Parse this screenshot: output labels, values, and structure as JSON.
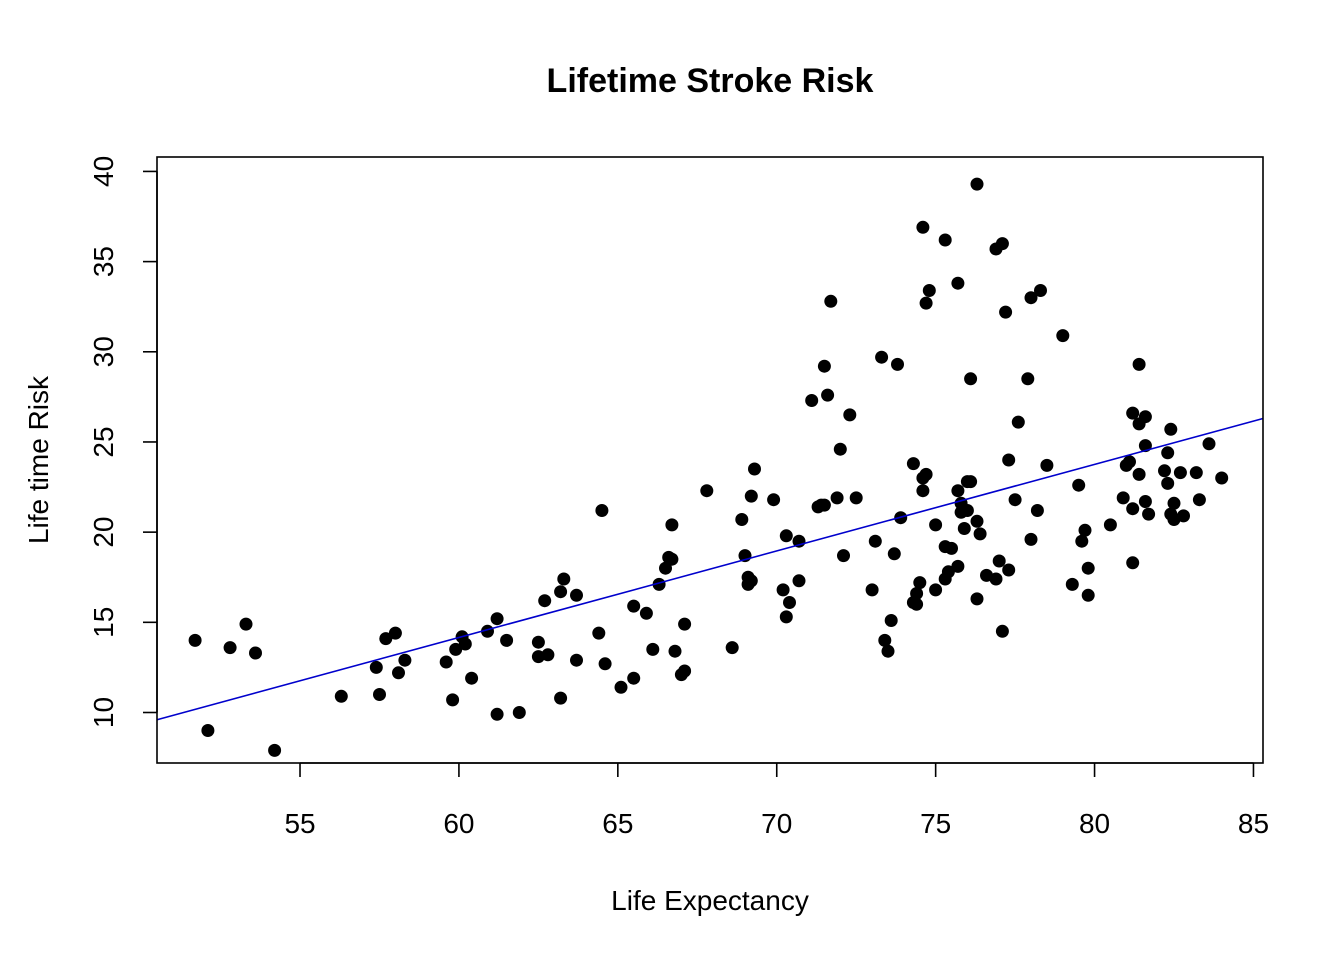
{
  "chart_data": {
    "type": "scatter",
    "title": "Lifetime Stroke Risk",
    "xlabel": "Life Expectancy",
    "ylabel": "Life time Risk",
    "xlim": [
      50.5,
      85.3
    ],
    "ylim": [
      7.2,
      40.8
    ],
    "xticks": [
      55,
      60,
      65,
      70,
      75,
      80,
      85
    ],
    "yticks": [
      10,
      15,
      20,
      25,
      30,
      35,
      40
    ],
    "grid": false,
    "legend": "none",
    "point_color": "#000000",
    "line_color": "#0000cc",
    "regression_line": {
      "x": [
        50.5,
        85.3
      ],
      "y": [
        9.6,
        26.3
      ]
    },
    "points": [
      [
        51.7,
        14.0
      ],
      [
        52.1,
        9.0
      ],
      [
        52.8,
        13.6
      ],
      [
        53.3,
        14.9
      ],
      [
        53.6,
        13.3
      ],
      [
        54.2,
        7.9
      ],
      [
        56.3,
        10.9
      ],
      [
        57.4,
        12.5
      ],
      [
        57.5,
        11.0
      ],
      [
        57.7,
        14.1
      ],
      [
        58.0,
        14.4
      ],
      [
        58.1,
        12.2
      ],
      [
        58.3,
        12.9
      ],
      [
        59.6,
        12.8
      ],
      [
        59.8,
        10.7
      ],
      [
        59.9,
        13.5
      ],
      [
        60.1,
        14.2
      ],
      [
        60.2,
        13.8
      ],
      [
        60.4,
        11.9
      ],
      [
        60.9,
        14.5
      ],
      [
        61.2,
        15.2
      ],
      [
        61.2,
        9.9
      ],
      [
        61.5,
        14.0
      ],
      [
        61.9,
        10.0
      ],
      [
        62.5,
        13.9
      ],
      [
        62.5,
        13.1
      ],
      [
        62.7,
        16.2
      ],
      [
        62.8,
        13.2
      ],
      [
        63.2,
        16.7
      ],
      [
        63.2,
        10.8
      ],
      [
        63.3,
        17.4
      ],
      [
        63.7,
        16.5
      ],
      [
        63.7,
        12.9
      ],
      [
        64.4,
        14.4
      ],
      [
        64.5,
        21.2
      ],
      [
        64.6,
        12.7
      ],
      [
        65.1,
        11.4
      ],
      [
        65.5,
        15.9
      ],
      [
        65.5,
        11.9
      ],
      [
        65.9,
        15.5
      ],
      [
        66.1,
        13.5
      ],
      [
        66.3,
        17.1
      ],
      [
        66.5,
        18.0
      ],
      [
        66.6,
        18.6
      ],
      [
        66.7,
        18.5
      ],
      [
        66.7,
        20.4
      ],
      [
        66.8,
        13.4
      ],
      [
        67.0,
        12.1
      ],
      [
        67.1,
        12.3
      ],
      [
        67.1,
        14.9
      ],
      [
        67.8,
        22.3
      ],
      [
        68.6,
        13.6
      ],
      [
        68.9,
        20.7
      ],
      [
        69.0,
        18.7
      ],
      [
        69.1,
        17.5
      ],
      [
        69.1,
        17.1
      ],
      [
        69.2,
        22.0
      ],
      [
        69.2,
        17.3
      ],
      [
        69.3,
        23.5
      ],
      [
        69.9,
        21.8
      ],
      [
        70.2,
        16.8
      ],
      [
        70.3,
        19.8
      ],
      [
        70.3,
        15.3
      ],
      [
        70.4,
        16.1
      ],
      [
        70.7,
        17.3
      ],
      [
        70.7,
        19.5
      ],
      [
        71.1,
        27.3
      ],
      [
        71.3,
        21.4
      ],
      [
        71.4,
        21.5
      ],
      [
        71.5,
        29.2
      ],
      [
        71.5,
        21.5
      ],
      [
        71.6,
        27.6
      ],
      [
        71.7,
        32.8
      ],
      [
        71.9,
        21.9
      ],
      [
        72.0,
        24.6
      ],
      [
        72.1,
        18.7
      ],
      [
        72.3,
        26.5
      ],
      [
        72.5,
        21.9
      ],
      [
        73.0,
        16.8
      ],
      [
        73.1,
        19.5
      ],
      [
        73.3,
        29.7
      ],
      [
        73.4,
        14.0
      ],
      [
        73.5,
        13.4
      ],
      [
        73.6,
        15.1
      ],
      [
        73.7,
        18.8
      ],
      [
        73.8,
        29.3
      ],
      [
        73.9,
        20.8
      ],
      [
        74.3,
        23.8
      ],
      [
        74.3,
        16.1
      ],
      [
        74.4,
        16.0
      ],
      [
        74.4,
        16.6
      ],
      [
        74.5,
        17.2
      ],
      [
        74.6,
        22.3
      ],
      [
        74.6,
        23.0
      ],
      [
        74.6,
        36.9
      ],
      [
        74.7,
        23.2
      ],
      [
        74.7,
        32.7
      ],
      [
        74.8,
        33.4
      ],
      [
        75.0,
        16.8
      ],
      [
        75.0,
        20.4
      ],
      [
        75.3,
        36.2
      ],
      [
        75.3,
        19.2
      ],
      [
        75.3,
        17.4
      ],
      [
        75.4,
        17.8
      ],
      [
        75.5,
        19.1
      ],
      [
        75.7,
        33.8
      ],
      [
        75.7,
        22.3
      ],
      [
        75.7,
        18.1
      ],
      [
        75.8,
        21.6
      ],
      [
        75.8,
        21.1
      ],
      [
        75.9,
        20.2
      ],
      [
        76.0,
        22.8
      ],
      [
        76.0,
        21.2
      ],
      [
        76.1,
        28.5
      ],
      [
        76.1,
        22.8
      ],
      [
        76.3,
        20.6
      ],
      [
        76.3,
        16.3
      ],
      [
        76.3,
        39.3
      ],
      [
        76.4,
        19.9
      ],
      [
        76.6,
        17.6
      ],
      [
        76.9,
        17.4
      ],
      [
        76.9,
        35.7
      ],
      [
        77.0,
        18.4
      ],
      [
        77.1,
        36.0
      ],
      [
        77.1,
        14.5
      ],
      [
        77.2,
        32.2
      ],
      [
        77.3,
        24.0
      ],
      [
        77.3,
        17.9
      ],
      [
        77.5,
        21.8
      ],
      [
        77.6,
        26.1
      ],
      [
        77.9,
        28.5
      ],
      [
        78.0,
        33.0
      ],
      [
        78.0,
        19.6
      ],
      [
        78.2,
        21.2
      ],
      [
        78.3,
        33.4
      ],
      [
        78.5,
        23.7
      ],
      [
        79.0,
        30.9
      ],
      [
        79.3,
        17.1
      ],
      [
        79.5,
        22.6
      ],
      [
        79.6,
        19.5
      ],
      [
        79.7,
        20.1
      ],
      [
        79.8,
        18.0
      ],
      [
        79.8,
        16.5
      ],
      [
        80.5,
        20.4
      ],
      [
        80.9,
        21.9
      ],
      [
        81.0,
        23.7
      ],
      [
        81.1,
        23.9
      ],
      [
        81.2,
        21.3
      ],
      [
        81.2,
        26.6
      ],
      [
        81.2,
        18.3
      ],
      [
        81.4,
        26.0
      ],
      [
        81.4,
        23.2
      ],
      [
        81.4,
        29.3
      ],
      [
        81.6,
        26.4
      ],
      [
        81.6,
        24.8
      ],
      [
        81.6,
        21.7
      ],
      [
        81.7,
        21.0
      ],
      [
        82.2,
        23.4
      ],
      [
        82.3,
        22.7
      ],
      [
        82.3,
        24.4
      ],
      [
        82.4,
        25.7
      ],
      [
        82.4,
        21.0
      ],
      [
        82.5,
        21.6
      ],
      [
        82.5,
        20.7
      ],
      [
        82.7,
        23.3
      ],
      [
        82.8,
        20.9
      ],
      [
        83.2,
        23.3
      ],
      [
        83.3,
        21.8
      ],
      [
        83.6,
        24.9
      ],
      [
        84.0,
        23.0
      ]
    ]
  }
}
